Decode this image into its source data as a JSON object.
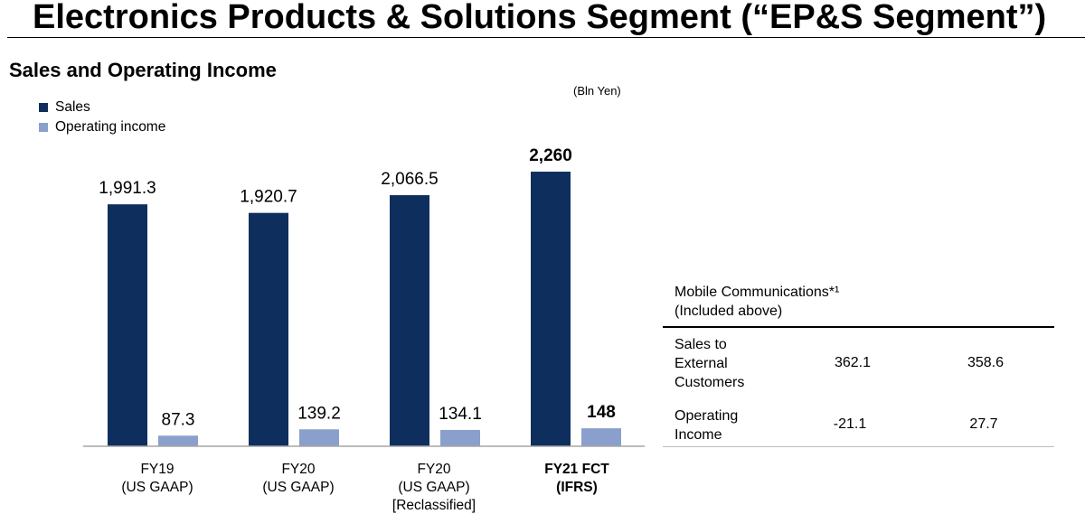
{
  "page": {
    "title": "Electronics Products & Solutions Segment (“EP&S Segment”)",
    "subtitle": "Sales and Operating Income",
    "unit": "(Bln Yen)"
  },
  "legend": [
    {
      "label": "Sales",
      "color": "#0e2f5e"
    },
    {
      "label": "Operating income",
      "color": "#8b9fcc"
    }
  ],
  "chart_data": {
    "type": "bar",
    "categories": [
      {
        "line1": "FY19",
        "line2": "(US GAAP)",
        "line3": "",
        "bold": false
      },
      {
        "line1": "FY20",
        "line2": "(US GAAP)",
        "line3": "",
        "bold": false
      },
      {
        "line1": "FY20",
        "line2": "(US GAAP)",
        "line3": "[Reclassified]",
        "bold": false
      },
      {
        "line1": "FY21 FCT",
        "line2": "(IFRS)",
        "line3": "",
        "bold": true
      }
    ],
    "series": [
      {
        "name": "Sales",
        "color": "#0e2f5e",
        "values": [
          1991.3,
          1920.7,
          2066.5,
          2260
        ],
        "labels": [
          "1,991.3",
          "1,920.7",
          "2,066.5",
          "2,260"
        ]
      },
      {
        "name": "Operating income",
        "color": "#8b9fcc",
        "values": [
          87.3,
          139.2,
          134.1,
          148
        ],
        "labels": [
          "87.3",
          "139.2",
          "134.1",
          "148"
        ]
      }
    ],
    "ylim": [
      0,
      2600
    ],
    "grid": false,
    "legend_position": "top-left"
  },
  "table": {
    "header_line1": "Mobile Communications*¹",
    "header_line2": "(Included above)",
    "rows": [
      {
        "label_lines": [
          "Sales to",
          "External",
          "Customers"
        ],
        "values": [
          "362.1",
          "358.6"
        ]
      },
      {
        "label_lines": [
          "Operating",
          "Income"
        ],
        "values": [
          "-21.1",
          "27.7"
        ]
      }
    ]
  }
}
